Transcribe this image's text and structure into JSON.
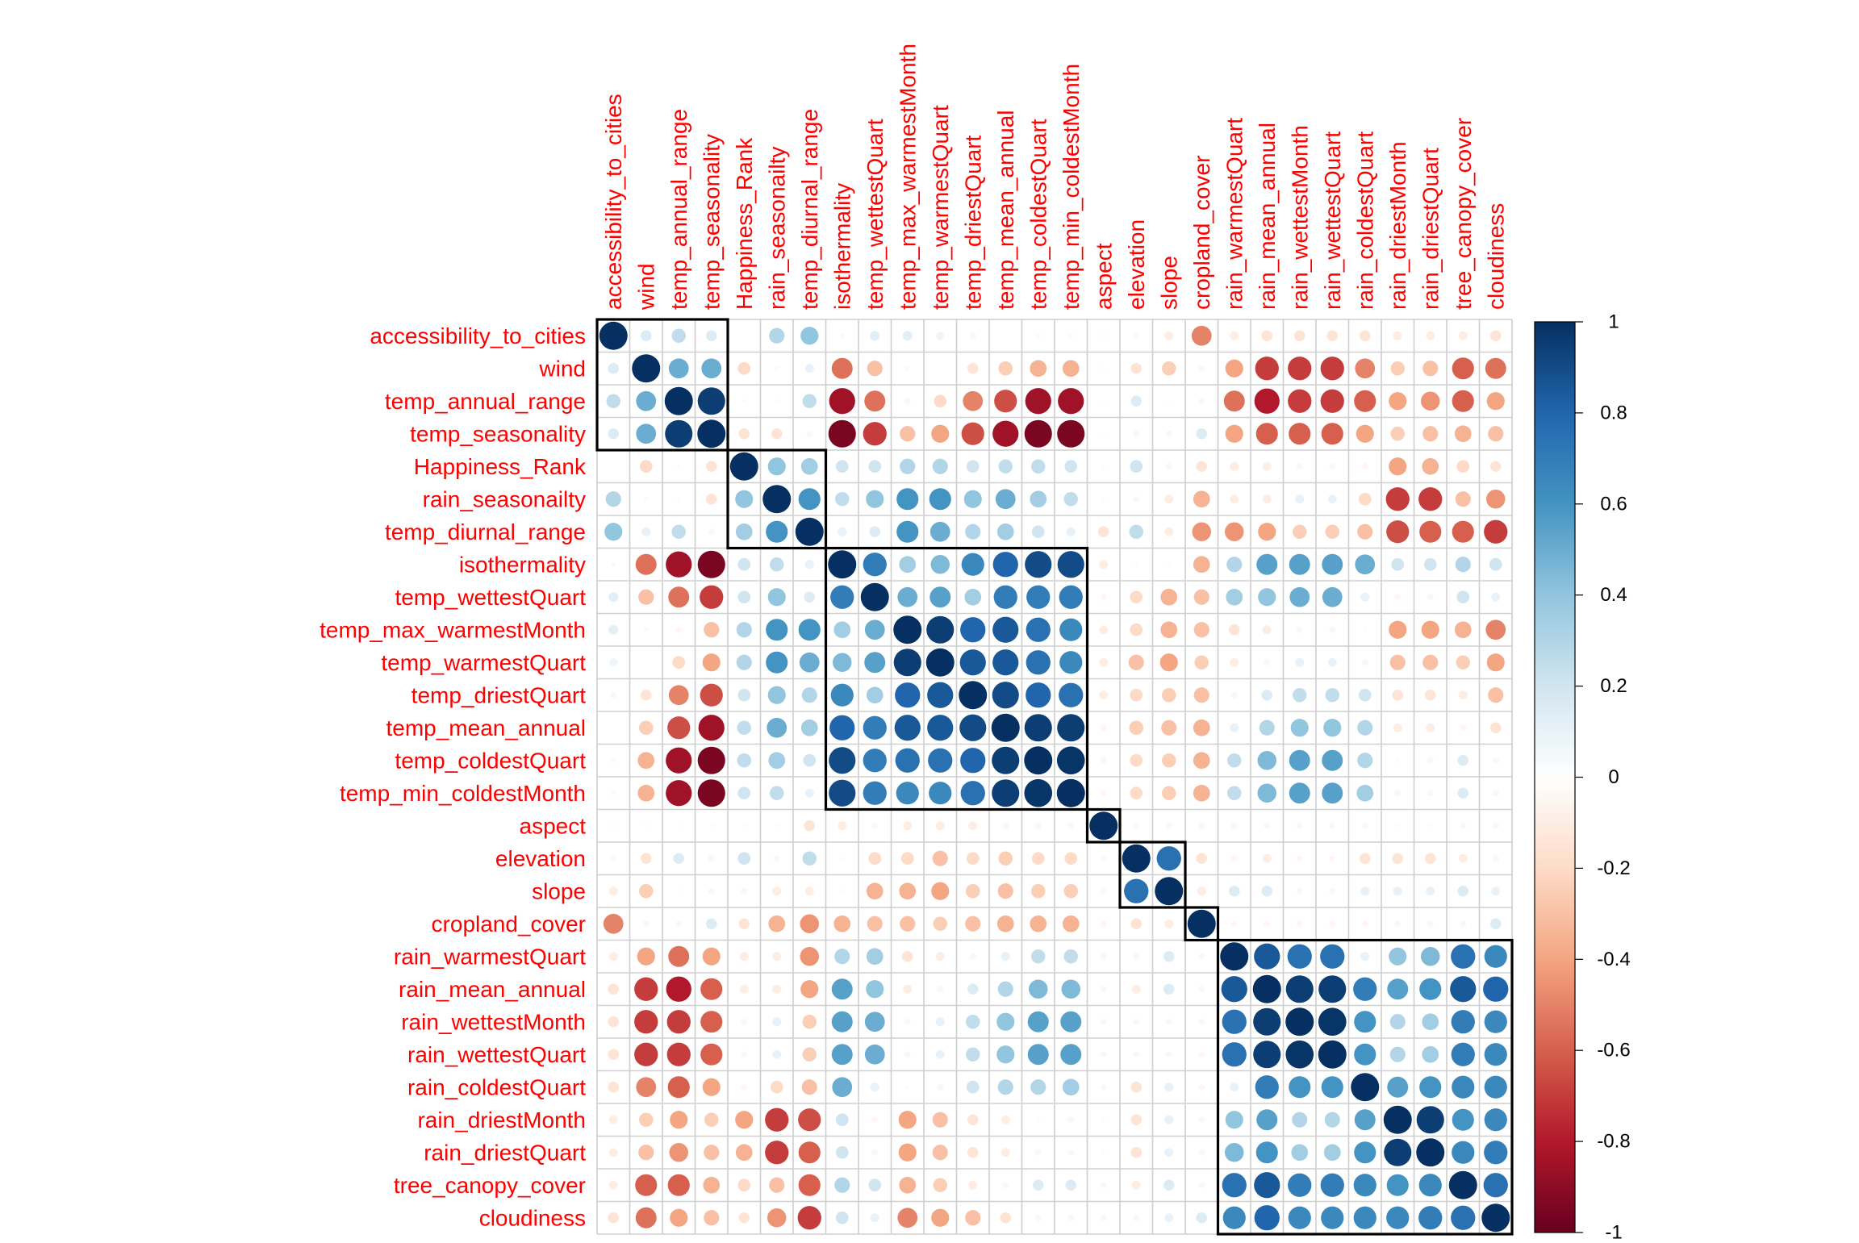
{
  "chart_data": {
    "type": "heatmap",
    "subtype": "correlation-circle-matrix",
    "variables": [
      "accessibility_to_cities",
      "wind",
      "temp_annual_range",
      "temp_seasonality",
      "Happiness_Rank",
      "rain_seasonailty",
      "temp_diurnal_range",
      "isothermality",
      "temp_wettestQuart",
      "temp_max_warmestMonth",
      "temp_warmestQuart",
      "temp_driestQuart",
      "temp_mean_annual",
      "temp_coldestQuart",
      "temp_min_coldestMonth",
      "aspect",
      "elevation",
      "slope",
      "cropland_cover",
      "rain_warmestQuart",
      "rain_mean_annual",
      "rain_wettestMonth",
      "rain_wettestQuart",
      "rain_coldestQuart",
      "rain_driestMonth",
      "rain_driestQuart",
      "tree_canopy_cover",
      "cloudiness"
    ],
    "matrix": [
      [
        1.0,
        0.15,
        0.25,
        0.15,
        0.0,
        0.3,
        0.4,
        0.03,
        0.12,
        0.12,
        0.08,
        -0.05,
        0.0,
        -0.03,
        -0.03,
        0.02,
        0.05,
        -0.1,
        -0.5,
        -0.1,
        -0.15,
        -0.15,
        -0.15,
        -0.15,
        -0.1,
        -0.1,
        -0.1,
        -0.15
      ],
      [
        0.15,
        1.0,
        0.5,
        0.5,
        -0.2,
        0.03,
        0.1,
        -0.55,
        -0.3,
        0.03,
        0.0,
        -0.15,
        -0.25,
        -0.35,
        -0.35,
        0.02,
        -0.15,
        -0.25,
        0.05,
        -0.4,
        -0.7,
        -0.7,
        -0.7,
        -0.5,
        -0.25,
        -0.3,
        -0.6,
        -0.55
      ],
      [
        0.25,
        0.5,
        1.0,
        0.95,
        0.02,
        0.02,
        0.25,
        -0.85,
        -0.55,
        -0.05,
        -0.2,
        -0.5,
        -0.65,
        -0.85,
        -0.85,
        0.02,
        0.15,
        0.02,
        0.05,
        -0.55,
        -0.8,
        -0.7,
        -0.7,
        -0.6,
        -0.4,
        -0.45,
        -0.6,
        -0.4
      ],
      [
        0.15,
        0.5,
        0.95,
        1.0,
        -0.15,
        -0.15,
        0.05,
        -0.95,
        -0.7,
        -0.3,
        -0.4,
        -0.65,
        -0.85,
        -0.95,
        -0.95,
        0.02,
        0.05,
        0.05,
        0.15,
        -0.4,
        -0.6,
        -0.6,
        -0.6,
        -0.4,
        -0.25,
        -0.3,
        -0.35,
        -0.3
      ],
      [
        0.0,
        -0.2,
        0.02,
        -0.15,
        1.0,
        0.4,
        0.35,
        0.2,
        0.2,
        0.3,
        0.3,
        0.2,
        0.25,
        0.25,
        0.2,
        0.02,
        0.2,
        -0.05,
        -0.15,
        -0.1,
        -0.1,
        0.05,
        0.05,
        -0.05,
        -0.4,
        -0.35,
        -0.2,
        -0.15
      ],
      [
        0.3,
        0.03,
        0.02,
        -0.15,
        0.4,
        1.0,
        0.6,
        0.25,
        0.4,
        0.6,
        0.6,
        0.4,
        0.5,
        0.35,
        0.25,
        0.02,
        0.05,
        -0.1,
        -0.35,
        -0.1,
        -0.1,
        0.1,
        0.1,
        -0.2,
        -0.7,
        -0.7,
        -0.3,
        -0.45
      ],
      [
        0.4,
        0.1,
        0.25,
        0.05,
        0.35,
        0.6,
        1.0,
        0.1,
        0.15,
        0.6,
        0.5,
        0.3,
        0.35,
        0.2,
        0.1,
        -0.15,
        0.25,
        -0.1,
        -0.45,
        -0.45,
        -0.4,
        -0.25,
        -0.25,
        -0.3,
        -0.65,
        -0.6,
        -0.6,
        -0.7
      ],
      [
        0.03,
        -0.55,
        -0.85,
        -0.95,
        0.2,
        0.25,
        0.1,
        1.0,
        0.7,
        0.35,
        0.45,
        0.65,
        0.8,
        0.9,
        0.9,
        -0.1,
        0.02,
        0.02,
        -0.35,
        0.3,
        0.55,
        0.55,
        0.55,
        0.5,
        0.2,
        0.2,
        0.3,
        0.2
      ],
      [
        0.12,
        -0.3,
        -0.55,
        -0.7,
        0.2,
        0.4,
        0.15,
        0.7,
        1.0,
        0.5,
        0.55,
        0.35,
        0.7,
        0.7,
        0.7,
        -0.05,
        -0.2,
        -0.35,
        -0.3,
        0.35,
        0.4,
        0.5,
        0.5,
        0.1,
        -0.05,
        0.05,
        0.2,
        0.1
      ],
      [
        0.12,
        0.03,
        -0.05,
        -0.3,
        0.3,
        0.6,
        0.6,
        0.35,
        0.5,
        1.0,
        0.95,
        0.8,
        0.85,
        0.75,
        0.65,
        -0.1,
        -0.2,
        -0.35,
        -0.3,
        -0.15,
        -0.1,
        0.05,
        0.05,
        0.02,
        -0.4,
        -0.4,
        -0.35,
        -0.5
      ],
      [
        0.08,
        0.0,
        -0.2,
        -0.4,
        0.3,
        0.6,
        0.5,
        0.45,
        0.55,
        0.95,
        1.0,
        0.85,
        0.85,
        0.75,
        0.65,
        -0.1,
        -0.3,
        -0.4,
        -0.25,
        -0.1,
        0.05,
        0.1,
        0.1,
        0.05,
        -0.3,
        -0.3,
        -0.25,
        -0.4
      ],
      [
        -0.05,
        -0.15,
        -0.5,
        -0.65,
        0.2,
        0.4,
        0.3,
        0.65,
        0.35,
        0.8,
        0.85,
        1.0,
        0.9,
        0.8,
        0.75,
        -0.1,
        -0.2,
        -0.25,
        -0.3,
        0.05,
        0.15,
        0.25,
        0.25,
        0.2,
        -0.15,
        -0.15,
        -0.1,
        -0.3
      ],
      [
        0.0,
        -0.25,
        -0.65,
        -0.85,
        0.25,
        0.5,
        0.35,
        0.8,
        0.7,
        0.85,
        0.85,
        0.9,
        1.0,
        0.95,
        0.95,
        -0.05,
        -0.25,
        -0.3,
        -0.35,
        0.1,
        0.3,
        0.4,
        0.4,
        0.3,
        -0.1,
        -0.1,
        -0.05,
        -0.15
      ],
      [
        -0.03,
        -0.35,
        -0.85,
        -0.95,
        0.25,
        0.35,
        0.2,
        0.9,
        0.7,
        0.75,
        0.75,
        0.8,
        0.95,
        1.0,
        0.98,
        -0.05,
        -0.2,
        -0.25,
        -0.35,
        0.25,
        0.45,
        0.55,
        0.55,
        0.3,
        0.02,
        0.05,
        0.15,
        0.05
      ],
      [
        -0.03,
        -0.35,
        -0.85,
        -0.95,
        0.2,
        0.25,
        0.1,
        0.9,
        0.7,
        0.65,
        0.65,
        0.75,
        0.95,
        0.98,
        1.0,
        -0.05,
        -0.2,
        -0.25,
        -0.35,
        0.25,
        0.45,
        0.55,
        0.55,
        0.35,
        0.05,
        0.05,
        0.15,
        0.05
      ],
      [
        0.02,
        0.02,
        0.02,
        0.02,
        0.02,
        0.02,
        -0.15,
        -0.1,
        -0.05,
        -0.1,
        -0.1,
        -0.1,
        -0.05,
        -0.05,
        -0.05,
        1.0,
        0.05,
        0.05,
        -0.05,
        0.05,
        0.05,
        0.05,
        0.05,
        0.05,
        0.02,
        0.02,
        0.05,
        0.05
      ],
      [
        0.05,
        -0.15,
        0.15,
        0.05,
        0.2,
        0.05,
        0.25,
        0.02,
        -0.2,
        -0.2,
        -0.3,
        -0.2,
        -0.25,
        -0.2,
        -0.2,
        0.05,
        1.0,
        0.75,
        -0.15,
        -0.05,
        -0.1,
        -0.05,
        -0.05,
        -0.15,
        -0.15,
        -0.15,
        -0.1,
        -0.05
      ],
      [
        -0.1,
        -0.25,
        0.02,
        0.05,
        -0.05,
        -0.1,
        -0.1,
        0.02,
        -0.35,
        -0.35,
        -0.4,
        -0.25,
        -0.3,
        -0.25,
        -0.25,
        0.05,
        0.75,
        1.0,
        -0.1,
        0.15,
        0.15,
        0.05,
        0.05,
        0.1,
        0.1,
        0.1,
        0.15,
        0.1
      ],
      [
        -0.5,
        0.05,
        0.05,
        0.15,
        -0.15,
        -0.35,
        -0.45,
        -0.35,
        -0.3,
        -0.3,
        -0.25,
        -0.3,
        -0.35,
        -0.35,
        -0.35,
        -0.05,
        -0.15,
        -0.1,
        1.0,
        -0.05,
        -0.05,
        -0.05,
        -0.05,
        -0.05,
        0.05,
        0.05,
        0.05,
        0.15
      ],
      [
        -0.1,
        -0.4,
        -0.55,
        -0.4,
        -0.1,
        -0.1,
        -0.45,
        0.3,
        0.35,
        -0.15,
        -0.1,
        0.05,
        0.1,
        0.25,
        0.25,
        0.05,
        -0.05,
        0.15,
        -0.05,
        1.0,
        0.85,
        0.75,
        0.75,
        0.1,
        0.4,
        0.45,
        0.75,
        0.65
      ],
      [
        -0.15,
        -0.7,
        -0.8,
        -0.6,
        -0.1,
        -0.1,
        -0.4,
        0.55,
        0.4,
        -0.1,
        0.05,
        0.15,
        0.3,
        0.45,
        0.45,
        0.05,
        -0.1,
        0.15,
        -0.05,
        0.85,
        1.0,
        0.95,
        0.95,
        0.7,
        0.55,
        0.6,
        0.85,
        0.8
      ],
      [
        -0.15,
        -0.7,
        -0.7,
        -0.6,
        0.05,
        0.1,
        -0.25,
        0.55,
        0.5,
        0.05,
        0.1,
        0.25,
        0.4,
        0.55,
        0.55,
        0.05,
        -0.05,
        0.05,
        -0.05,
        0.75,
        0.95,
        1.0,
        0.98,
        0.6,
        0.3,
        0.35,
        0.7,
        0.65
      ],
      [
        -0.15,
        -0.7,
        -0.7,
        -0.6,
        0.05,
        0.1,
        -0.25,
        0.55,
        0.5,
        0.05,
        0.1,
        0.25,
        0.4,
        0.55,
        0.55,
        0.05,
        -0.05,
        0.05,
        -0.05,
        0.75,
        0.95,
        0.98,
        1.0,
        0.6,
        0.3,
        0.35,
        0.7,
        0.65
      ],
      [
        -0.15,
        -0.5,
        -0.6,
        -0.4,
        -0.05,
        -0.2,
        -0.3,
        0.5,
        0.1,
        0.02,
        0.05,
        0.2,
        0.3,
        0.3,
        0.35,
        0.05,
        -0.15,
        0.1,
        -0.05,
        0.1,
        0.7,
        0.6,
        0.6,
        1.0,
        0.55,
        0.6,
        0.65,
        0.65
      ],
      [
        -0.1,
        -0.25,
        -0.4,
        -0.25,
        -0.4,
        -0.7,
        -0.65,
        0.2,
        -0.05,
        -0.4,
        -0.3,
        -0.15,
        -0.1,
        0.02,
        0.05,
        0.02,
        -0.15,
        0.1,
        0.05,
        0.4,
        0.55,
        0.3,
        0.3,
        0.55,
        1.0,
        0.95,
        0.6,
        0.65
      ],
      [
        -0.1,
        -0.3,
        -0.45,
        -0.3,
        -0.35,
        -0.7,
        -0.6,
        0.2,
        0.05,
        -0.4,
        -0.3,
        -0.15,
        -0.1,
        0.05,
        0.05,
        0.02,
        -0.15,
        0.1,
        0.05,
        0.45,
        0.6,
        0.35,
        0.35,
        0.6,
        0.95,
        1.0,
        0.65,
        0.7
      ],
      [
        -0.1,
        -0.6,
        -0.6,
        -0.35,
        -0.2,
        -0.3,
        -0.6,
        0.3,
        0.2,
        -0.35,
        -0.25,
        -0.1,
        -0.05,
        0.15,
        0.15,
        0.05,
        -0.1,
        0.15,
        0.05,
        0.75,
        0.85,
        0.7,
        0.7,
        0.65,
        0.6,
        0.65,
        1.0,
        0.75
      ],
      [
        -0.15,
        -0.55,
        -0.4,
        -0.3,
        -0.15,
        -0.45,
        -0.7,
        0.2,
        0.1,
        -0.5,
        -0.4,
        -0.3,
        -0.15,
        0.05,
        0.05,
        0.05,
        -0.05,
        0.1,
        0.15,
        0.65,
        0.8,
        0.65,
        0.65,
        0.65,
        0.65,
        0.7,
        0.75,
        1.0
      ]
    ],
    "clusters": [
      [
        0,
        3
      ],
      [
        4,
        6
      ],
      [
        7,
        14
      ],
      [
        15,
        15
      ],
      [
        16,
        17
      ],
      [
        18,
        18
      ],
      [
        19,
        27
      ]
    ],
    "colorbar": {
      "ticks": [
        "1",
        "0.8",
        "0.6",
        "0.4",
        "0.2",
        "0",
        "-0.2",
        "-0.4",
        "-0.6",
        "-0.8",
        "-1"
      ],
      "range": [
        -1,
        1
      ]
    },
    "colors": {
      "label": "#ff0000",
      "grid": "#cfcfcf",
      "cluster_rect": "#000000",
      "palette": [
        "#67001F",
        "#B2182B",
        "#D6604D",
        "#F4A582",
        "#FDDBC7",
        "#FFFFFF",
        "#D1E5F0",
        "#92C5DE",
        "#4393C3",
        "#2166AC",
        "#053061"
      ]
    }
  }
}
